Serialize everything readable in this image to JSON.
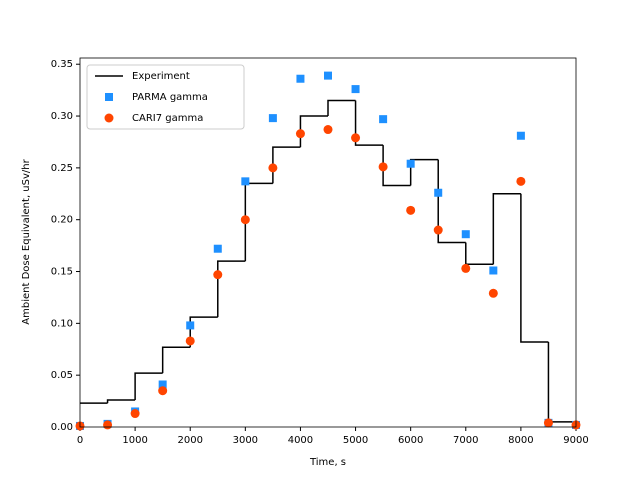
{
  "chart_data": {
    "type": "step-scatter",
    "x_label": "Time, s",
    "y_label": "Ambient Dose Equivalent, uSv/hr",
    "x": [
      0,
      500,
      1000,
      1500,
      2000,
      2500,
      3000,
      3500,
      4000,
      4500,
      5000,
      5500,
      6000,
      6500,
      7000,
      7500,
      8000,
      8500,
      9000
    ],
    "series": [
      {
        "name": "Experiment",
        "color": "#000000",
        "style": "step",
        "values": [
          0.023,
          0.026,
          0.052,
          0.077,
          0.106,
          0.16,
          0.235,
          0.27,
          0.3,
          0.315,
          0.272,
          0.233,
          0.258,
          0.178,
          0.157,
          0.225,
          0.082,
          0.005,
          0.005
        ]
      },
      {
        "name": "PARMA gamma",
        "color": "#1e90ff",
        "style": "square",
        "values": [
          0.001,
          0.003,
          0.015,
          0.041,
          0.098,
          0.172,
          0.237,
          0.298,
          0.336,
          0.339,
          0.326,
          0.297,
          0.254,
          0.226,
          0.186,
          0.151,
          0.281,
          0.004,
          0.002
        ]
      },
      {
        "name": "CARI7 gamma",
        "color": "#ff4500",
        "style": "circle",
        "values": [
          0.001,
          0.002,
          0.013,
          0.035,
          0.083,
          0.147,
          0.2,
          0.25,
          0.283,
          0.287,
          0.279,
          0.251,
          0.209,
          0.19,
          0.153,
          0.129,
          0.237,
          0.004,
          0.002
        ]
      }
    ],
    "xlim": [
      0,
      9000
    ],
    "ylim": [
      0,
      0.356
    ],
    "xticks": [
      0,
      1000,
      2000,
      3000,
      4000,
      5000,
      6000,
      7000,
      8000,
      9000
    ],
    "yticks": [
      {
        "value": 0,
        "label": "0.00"
      },
      {
        "value": 0.05,
        "label": "0.05"
      },
      {
        "value": 0.1,
        "label": "0.10"
      },
      {
        "value": 0.15,
        "label": "0.15"
      },
      {
        "value": 0.2,
        "label": "0.20"
      },
      {
        "value": 0.25,
        "label": "0.25"
      },
      {
        "value": 0.3,
        "label": "0.30"
      },
      {
        "value": 0.35,
        "label": "0.35"
      }
    ],
    "legend": "upper left"
  }
}
